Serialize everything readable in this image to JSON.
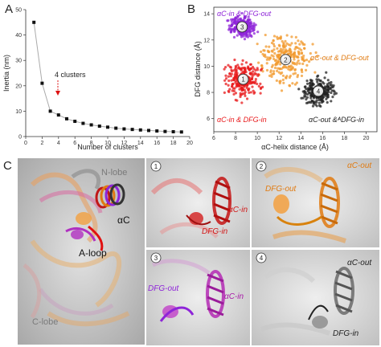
{
  "panels": {
    "a": {
      "letter": "A"
    },
    "b": {
      "letter": "B"
    },
    "c": {
      "letter": "C",
      "overview": {
        "nlobe": "N-lobe",
        "clobe": "C-lobe",
        "ac": "αC",
        "aloop": "A-loop"
      },
      "sub": [
        {
          "num": "1",
          "label1": "αC-in",
          "label2": "DFG-in",
          "color": "#d11a1a"
        },
        {
          "num": "2",
          "label1": "αC-out",
          "label2": "DFG-out",
          "color": "#e07a10"
        },
        {
          "num": "3",
          "label1": "DFG-out",
          "label2": "αC-in",
          "color": "#a81aa8"
        },
        {
          "num": "4",
          "label1": "αC-out",
          "label2": "DFG-in",
          "color": "#222222"
        }
      ]
    }
  },
  "chart_data": [
    {
      "type": "line",
      "xlabel": "Number of clusters",
      "ylabel": "Inertia (nm)",
      "xlim": [
        0,
        20
      ],
      "ylim": [
        0,
        50
      ],
      "xticks": [
        0,
        2,
        4,
        6,
        8,
        10,
        12,
        14,
        16,
        18,
        20
      ],
      "yticks": [
        0,
        10,
        20,
        30,
        40,
        50
      ],
      "x": [
        1,
        2,
        3,
        4,
        5,
        6,
        7,
        8,
        9,
        10,
        11,
        12,
        13,
        14,
        15,
        16,
        17,
        18,
        19
      ],
      "y": [
        45,
        21,
        10,
        8.5,
        7,
        6,
        5.2,
        4.6,
        4.1,
        3.7,
        3.3,
        3.0,
        2.8,
        2.6,
        2.4,
        2.2,
        2.0,
        1.9,
        1.8
      ],
      "annotation": {
        "text": "4 clusters",
        "x": 4,
        "y": 8.5
      },
      "marker_color": "#111111",
      "line_color": "#aaaaaa"
    },
    {
      "type": "scatter",
      "xlabel": "αC-helix distance (Å)",
      "ylabel": "DFG distance (Å)",
      "xlim": [
        6,
        21
      ],
      "ylim": [
        5,
        14.5
      ],
      "xticks": [
        6,
        8,
        10,
        12,
        14,
        16,
        18,
        20
      ],
      "yticks": [
        6,
        8,
        10,
        12,
        14
      ],
      "clusters": [
        {
          "id": "1",
          "label": "αC-in & DFG-in",
          "color": "#e8191b",
          "center": [
            8.7,
            9.0
          ],
          "spread": [
            1.5,
            1.3
          ],
          "label_color": "#e8191b"
        },
        {
          "id": "2",
          "label": "αC-out & DFG-out",
          "color": "#f29a2e",
          "center": [
            12.6,
            10.5
          ],
          "spread": [
            2.0,
            1.6
          ],
          "label_color": "#e07a10"
        },
        {
          "id": "3",
          "label": "αC-in & DFG-out",
          "color": "#8e24d8",
          "center": [
            8.6,
            13.0
          ],
          "spread": [
            1.1,
            0.8
          ],
          "label_color": "#8e24d8"
        },
        {
          "id": "4",
          "label": "αC-out &ᴬDFG-in",
          "color": "#222222",
          "center": [
            15.6,
            8.1
          ],
          "spread": [
            1.3,
            1.0
          ],
          "label_color": "#222222"
        }
      ]
    }
  ]
}
